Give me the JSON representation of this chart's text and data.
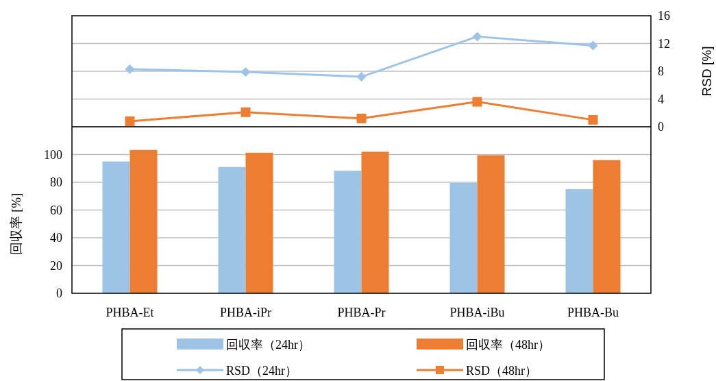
{
  "chart_data": {
    "type": "bar",
    "ylabel": "回収率 [%]",
    "y2label": "RSD [%]",
    "categories": [
      "PHBA-Et",
      "PHBA-iPr",
      "PHBA-Pr",
      "PHBA-iBu",
      "PHBA-Bu"
    ],
    "series": [
      {
        "name": "回収率（24hr）",
        "color": "#9dc3e6",
        "values": [
          95,
          91,
          88.3,
          79.5,
          75
        ]
      },
      {
        "name": "回収率（48hr）",
        "color": "#ed7d31",
        "values": [
          103.3,
          101.3,
          102,
          99.5,
          96
        ]
      },
      {
        "name": "RSD（24hr）",
        "type": "line",
        "axis": "y2",
        "marker": "diamond",
        "color": "#9dc3e6",
        "values": [
          8.3,
          7.9,
          7.2,
          13.0,
          11.7
        ]
      },
      {
        "name": "RSD（48hr）",
        "type": "line",
        "axis": "y2",
        "marker": "square",
        "color": "#ed7d31",
        "values": [
          0.8,
          2.1,
          1.2,
          3.6,
          1.0
        ]
      }
    ],
    "ylim": [
      0,
      200
    ],
    "yticks": [
      0,
      20,
      40,
      60,
      80,
      100
    ],
    "y2lim": [
      -24,
      16
    ],
    "y2ticks": [
      0,
      4,
      8,
      12,
      16
    ],
    "ref_lines": [
      {
        "axis": "y2",
        "value": 0,
        "color": "#000000"
      }
    ],
    "grid": true,
    "legend": "bottom"
  }
}
